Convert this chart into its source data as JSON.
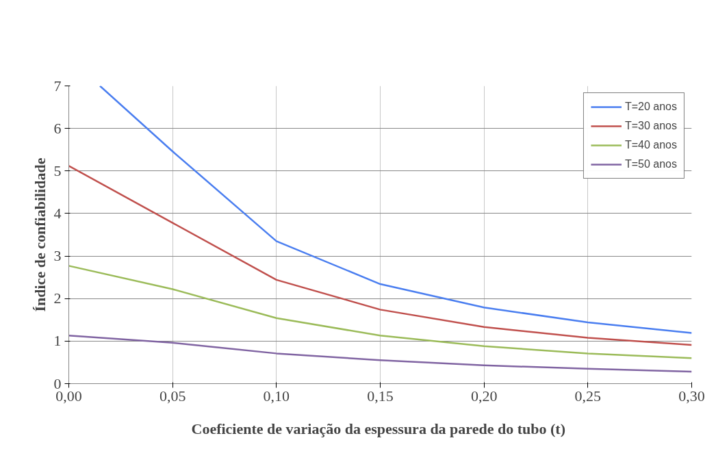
{
  "chart_data": {
    "type": "line",
    "xlabel": "Coeficiente de variação da espessura da parede do tubo  (t)",
    "ylabel": "Índice de confiabilidade",
    "x": [
      0,
      0.05,
      0.1,
      0.15,
      0.2,
      0.25,
      0.3
    ],
    "series": [
      {
        "name": "T=20 anos",
        "color": "#4a7ef0",
        "x": [
          0.015,
          0.05,
          0.1,
          0.15,
          0.2,
          0.25,
          0.3
        ],
        "values": [
          7,
          5.46,
          3.35,
          2.34,
          1.79,
          1.44,
          1.19
        ]
      },
      {
        "name": "T=30 anos",
        "color": "#c0504d",
        "values": [
          5.12,
          3.78,
          2.44,
          1.74,
          1.33,
          1.08,
          0.91
        ]
      },
      {
        "name": "T=40 anos",
        "color": "#9bbb59",
        "values": [
          2.77,
          2.22,
          1.54,
          1.13,
          0.88,
          0.71,
          0.6
        ]
      },
      {
        "name": "T=50 anos",
        "color": "#8064a2",
        "values": [
          1.13,
          0.96,
          0.71,
          0.55,
          0.43,
          0.35,
          0.28
        ]
      }
    ],
    "xlim": [
      0,
      0.3
    ],
    "ylim": [
      0,
      7
    ],
    "xticks": [
      {
        "value": 0,
        "label": "0,00"
      },
      {
        "value": 0.05,
        "label": "0,05"
      },
      {
        "value": 0.1,
        "label": "0,10"
      },
      {
        "value": 0.15,
        "label": "0,15"
      },
      {
        "value": 0.2,
        "label": "0,20"
      },
      {
        "value": 0.25,
        "label": "0,25"
      },
      {
        "value": 0.3,
        "label": "0,30"
      }
    ],
    "yticks": [
      0,
      1,
      2,
      3,
      4,
      5,
      6,
      7
    ],
    "grid": true,
    "legend": "top right",
    "marker": "none",
    "line_style": "solid"
  }
}
